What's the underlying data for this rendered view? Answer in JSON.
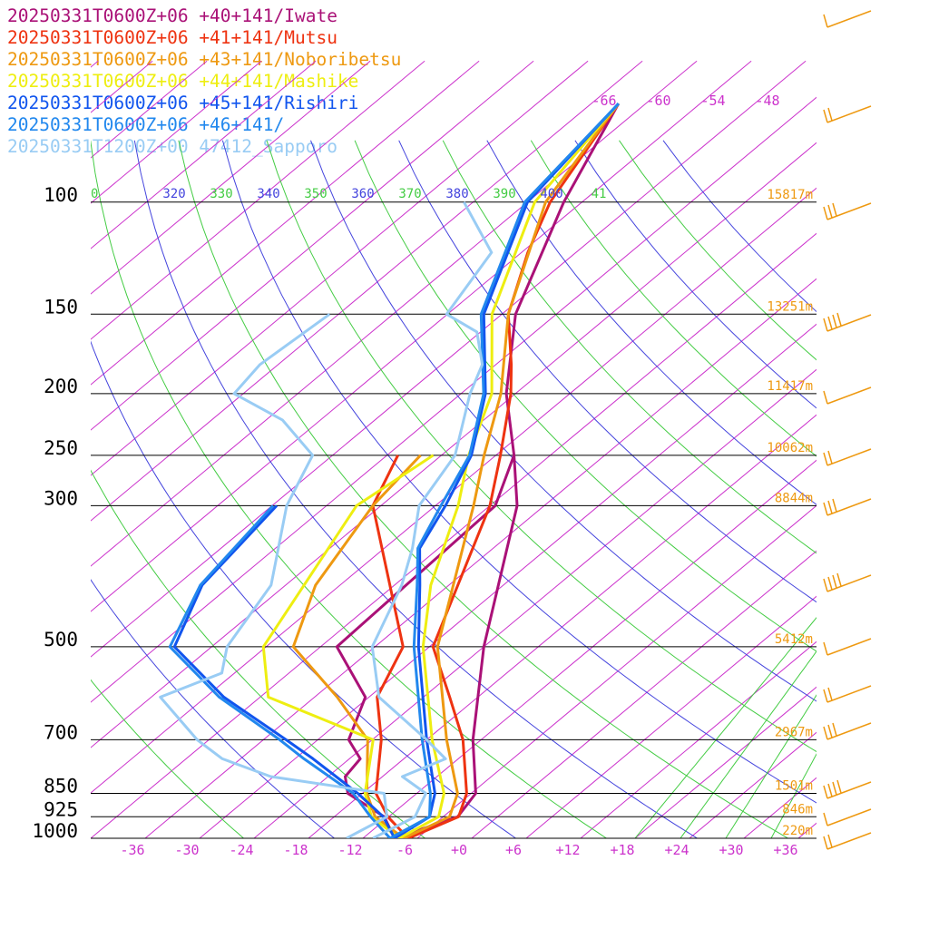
{
  "legend": [
    {
      "label": "20250331T0600Z+06 +40+141/Iwate",
      "color": "#aa1177"
    },
    {
      "label": "20250331T0600Z+06 +41+141/Mutsu",
      "color": "#ee3311"
    },
    {
      "label": "20250331T0600Z+06 +43+141/Noboribetsu",
      "color": "#ee9911"
    },
    {
      "label": "20250331T0600Z+06 +44+141/Mashike",
      "color": "#eeee11"
    },
    {
      "label": "20250331T0600Z+06 +45+141/Rishiri",
      "color": "#1155ee"
    },
    {
      "label": "20250331T0600Z+06 +46+141/",
      "color": "#2288ee"
    },
    {
      "label": "20250331T1200Z+00 47412_Sapporo",
      "color": "#99ccf4"
    }
  ],
  "chart_data": {
    "type": "line",
    "subtype": "skew-T log-p sounding",
    "x_ticks": [
      "-36",
      "-30",
      "-24",
      "-18",
      "-12",
      "-6",
      "+0",
      "+6",
      "+12",
      "+18",
      "+24",
      "+30",
      "+36"
    ],
    "pressure_levels": [
      "100",
      "150",
      "200",
      "250",
      "300",
      "500",
      "700",
      "850",
      "925",
      "1000"
    ],
    "heights": [
      "15817m",
      "13251m",
      "11417m",
      "10062m",
      "8844m",
      "5412m",
      "2967m",
      "1501m",
      "846m",
      "220m"
    ],
    "dry_adiabat_labels": [
      "-66",
      "-60",
      "-54",
      "-48"
    ],
    "theta_labels": [
      {
        "text": "0",
        "color": "#44cc44"
      },
      {
        "text": "320",
        "color": "#4444dd"
      },
      {
        "text": "330",
        "color": "#44cc44"
      },
      {
        "text": "340",
        "color": "#4444dd"
      },
      {
        "text": "350",
        "color": "#44cc44"
      },
      {
        "text": "360",
        "color": "#4444dd"
      },
      {
        "text": "370",
        "color": "#44cc44"
      },
      {
        "text": "380",
        "color": "#4444dd"
      },
      {
        "text": "390",
        "color": "#44cc44"
      },
      {
        "text": "400",
        "color": "#4444dd"
      },
      {
        "text": "41",
        "color": "#44cc44"
      }
    ],
    "xlim": [
      -40,
      40
    ],
    "ylim_hpa": [
      1000,
      100
    ],
    "series": [
      {
        "name": "20250331T0600Z+06 +40+141/Iwate",
        "color": "#aa1177",
        "temp": [
          [
            1000,
            -6.5
          ],
          [
            925,
            -2.4
          ],
          [
            850,
            -3.5
          ],
          [
            700,
            -10.9
          ],
          [
            500,
            -22.0
          ],
          [
            300,
            -37.0
          ],
          [
            250,
            -44.0
          ],
          [
            200,
            -53.0
          ],
          [
            150,
            -62.5
          ],
          [
            100,
            -72.0
          ],
          [
            70,
            -79.0
          ]
        ],
        "dew": [
          [
            1000,
            -6.5
          ],
          [
            925,
            -10.5
          ],
          [
            850,
            -17.6
          ],
          [
            800,
            -20.1
          ],
          [
            750,
            -20.8
          ],
          [
            700,
            -24.6
          ],
          [
            600,
            -28.4
          ],
          [
            500,
            -38.2
          ],
          [
            300,
            -39.4
          ],
          [
            250,
            -44.0
          ]
        ]
      },
      {
        "name": "20250331T0600Z+06 +41+141/Mutsu",
        "color": "#ee3311",
        "temp": [
          [
            1000,
            -5.0
          ],
          [
            925,
            -2.3
          ],
          [
            850,
            -4.5
          ],
          [
            700,
            -12.0
          ],
          [
            600,
            -19.1
          ],
          [
            500,
            -27.6
          ],
          [
            300,
            -40.0
          ],
          [
            250,
            -45.5
          ],
          [
            200,
            -52.5
          ],
          [
            180,
            -56.3
          ],
          [
            150,
            -63.3
          ],
          [
            120,
            -69.3
          ],
          [
            100,
            -73.5
          ],
          [
            70,
            -79.0
          ]
        ],
        "dew": [
          [
            1000,
            -5.0
          ],
          [
            925,
            -10.1
          ],
          [
            850,
            -14.5
          ],
          [
            700,
            -21.0
          ],
          [
            600,
            -27.1
          ],
          [
            500,
            -30.9
          ],
          [
            300,
            -52.9
          ],
          [
            250,
            -56.8
          ]
        ]
      },
      {
        "name": "20250331T0600Z+06 +43+141/Noboribetsu",
        "color": "#ee9911",
        "temp": [
          [
            1000,
            -5.5
          ],
          [
            925,
            -3.3
          ],
          [
            850,
            -5.5
          ],
          [
            700,
            -13.8
          ],
          [
            500,
            -27.1
          ],
          [
            300,
            -41.8
          ],
          [
            250,
            -47.3
          ],
          [
            200,
            -53.6
          ],
          [
            150,
            -63.3
          ],
          [
            100,
            -74.0
          ],
          [
            70,
            -79.0
          ]
        ],
        "dew": [
          [
            1000,
            -5.5
          ],
          [
            925,
            -11.5
          ],
          [
            850,
            -15.5
          ],
          [
            700,
            -22.5
          ],
          [
            600,
            -31.5
          ],
          [
            500,
            -43.0
          ],
          [
            400,
            -48.7
          ],
          [
            300,
            -52.9
          ],
          [
            250,
            -54.3
          ]
        ]
      },
      {
        "name": "20250331T0600Z+06 +44+141/Mashike",
        "color": "#eeee11",
        "temp": [
          [
            1000,
            -6.0
          ],
          [
            925,
            -4.5
          ],
          [
            850,
            -7.0
          ],
          [
            700,
            -15.4
          ],
          [
            500,
            -28.7
          ],
          [
            400,
            -36.0
          ],
          [
            300,
            -43.5
          ],
          [
            250,
            -49.0
          ],
          [
            200,
            -54.6
          ],
          [
            150,
            -65.1
          ],
          [
            100,
            -75.2
          ],
          [
            70,
            -79.0
          ]
        ],
        "dew": [
          [
            1000,
            -6.0
          ],
          [
            925,
            -11.9
          ],
          [
            850,
            -15.7
          ],
          [
            700,
            -21.9
          ],
          [
            600,
            -39.1
          ],
          [
            500,
            -46.3
          ],
          [
            300,
            -54.7
          ],
          [
            250,
            -52.9
          ]
        ]
      },
      {
        "name": "20250331T0600Z+06 +45+141/Rishiri",
        "color": "#1155ee",
        "temp": [
          [
            1000,
            -6.5
          ],
          [
            925,
            -5.5
          ],
          [
            850,
            -8.0
          ],
          [
            700,
            -16.0
          ],
          [
            500,
            -29.2
          ],
          [
            400,
            -37.2
          ],
          [
            350,
            -42.1
          ],
          [
            300,
            -44.9
          ],
          [
            250,
            -48.7
          ],
          [
            200,
            -55.3
          ],
          [
            150,
            -66.0
          ],
          [
            100,
            -76.0
          ],
          [
            70,
            -79.0
          ]
        ],
        "dew": [
          [
            1000,
            -6.5
          ],
          [
            925,
            -10.6
          ],
          [
            850,
            -16.5
          ],
          [
            750,
            -26.0
          ],
          [
            700,
            -31.5
          ],
          [
            600,
            -44.0
          ],
          [
            500,
            -56.1
          ],
          [
            400,
            -61.2
          ],
          [
            300,
            -63.5
          ]
        ]
      },
      {
        "name": "20250331T0600Z+06 +46+141/",
        "color": "#2288ee",
        "temp": [
          [
            1000,
            -7.0
          ],
          [
            925,
            -5.5
          ],
          [
            850,
            -8.5
          ],
          [
            700,
            -16.5
          ],
          [
            500,
            -29.7
          ],
          [
            400,
            -37.5
          ],
          [
            350,
            -42.3
          ],
          [
            300,
            -45.4
          ],
          [
            250,
            -48.9
          ],
          [
            200,
            -55.5
          ],
          [
            150,
            -66.3
          ],
          [
            100,
            -76.3
          ],
          [
            70,
            -79.0
          ]
        ],
        "dew": [
          [
            1000,
            -7.0
          ],
          [
            925,
            -12.0
          ],
          [
            850,
            -17.0
          ],
          [
            750,
            -27.0
          ],
          [
            700,
            -32.2
          ],
          [
            600,
            -44.5
          ],
          [
            500,
            -56.6
          ],
          [
            400,
            -61.4
          ],
          [
            300,
            -63.9
          ]
        ]
      },
      {
        "name": "20250331T1200Z+00 47412_Sapporo",
        "color": "#99ccf4",
        "temp": [
          [
            1000,
            -8.9
          ],
          [
            925,
            -7.1
          ],
          [
            850,
            -9.0
          ],
          [
            800,
            -13.8
          ],
          [
            750,
            -11.4
          ],
          [
            700,
            -16.0
          ],
          [
            600,
            -26.9
          ],
          [
            500,
            -34.3
          ],
          [
            400,
            -39.2
          ],
          [
            350,
            -42.9
          ],
          [
            300,
            -47.8
          ],
          [
            250,
            -50.5
          ],
          [
            200,
            -57.0
          ],
          [
            180,
            -59.5
          ],
          [
            160,
            -64.4
          ],
          [
            150,
            -70.1
          ],
          [
            120,
            -73.3
          ],
          [
            100,
            -83.0
          ]
        ],
        "dew": [
          [
            1000,
            -11.8
          ],
          [
            925,
            -10.2
          ],
          [
            850,
            -13.6
          ],
          [
            800,
            -28.3
          ],
          [
            750,
            -36.0
          ],
          [
            700,
            -41.3
          ],
          [
            600,
            -51.0
          ],
          [
            550,
            -47.4
          ],
          [
            500,
            -50.3
          ],
          [
            400,
            -53.6
          ],
          [
            300,
            -62.4
          ],
          [
            250,
            -66.2
          ],
          [
            220,
            -74.2
          ],
          [
            200,
            -83.0
          ],
          [
            180,
            -84.0
          ],
          [
            150,
            -83.0
          ]
        ]
      }
    ]
  }
}
